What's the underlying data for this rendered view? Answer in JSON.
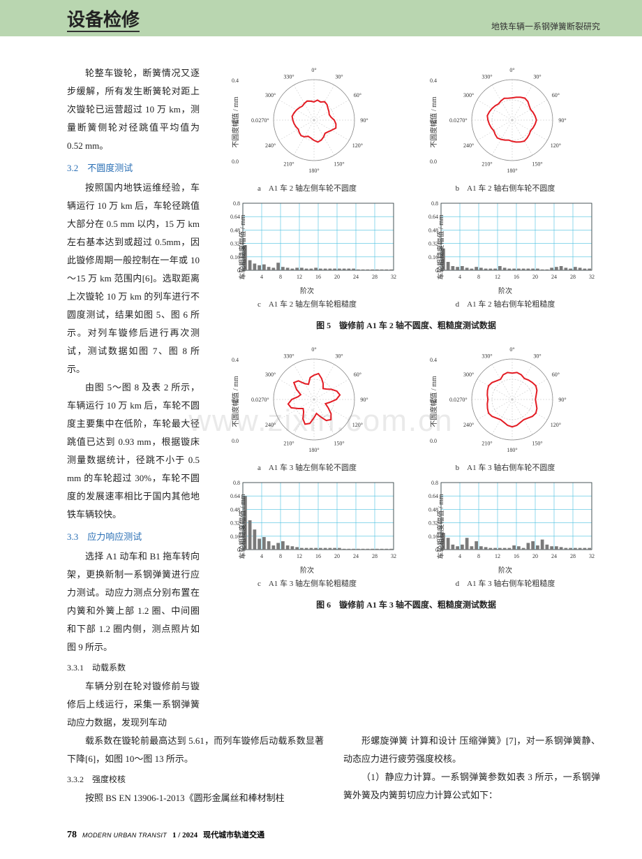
{
  "header": {
    "section": "设备检修",
    "running_title": "地铁车辆一系钢弹簧断裂研究"
  },
  "left": {
    "p1": "轮整车镟轮，断簧情况又逐步缓解，所有发生断簧轮对距上次镟轮已运营超过 10 万 km，测量断簧侧轮对径跳值平均值为 0.52 mm。",
    "h32": "3.2　不圆度测试",
    "p2": "按照国内地铁运维经验，车辆运行 10 万 km 后，车轮径跳值大部分在 0.5 mm 以内，15 万 km 左右基本达到或超过 0.5mm，因此镟修周期一般控制在一年或 10～15 万 km 范围内[6]。选取距离上次镟轮 10 万 km 的列车进行不圆度测试，结果如图 5、图 6 所示。对列车镟修后进行再次测试，测试数据如图 7、图 8 所示。",
    "p3": "由图 5～图 8 及表 2 所示，车辆运行 10 万 km 后，车轮不圆度主要集中在低阶，车轮最大径跳值已达到 0.93 mm，根据镟床测量数据统计，径跳不小于 0.5 mm 的车轮超过 30%，车轮不圆度的发展速率相比于国内其他地铁车辆较快。",
    "h33": "3.3　应力响应测试",
    "p4": "选择 A1 动车和 B1 拖车转向架，更换新制一系钢弹簧进行应力测试。动应力测点分别布置在内簧和外簧上部 1.2 圈、中间圈和下部 1.2 圈内侧，测点照片如图 9 所示。",
    "h331": "3.3.1　动载系数",
    "p5": "车辆分别在轮对镟修前与镟修后上线运行，采集一系钢弹簧动应力数据，发现列车动"
  },
  "bottom": {
    "left_p": "载系数在镟轮前最高达到 5.61，而列车镟修后动载系数显著下降[6]，如图 10～图 13 所示。",
    "left_h": "3.3.2　强度校核",
    "left_p2": "按照 BS EN 13906-1-2013《圆形金属丝和棒材制柱",
    "right_p": "形螺旋弹簧 计算和设计 压缩弹簧》[7]，对一系钢弹簧静、动态应力进行疲劳强度校核。",
    "right_p2": "（1）静应力计算。一系钢弹簧参数如表 3 所示，一系钢弹簧外簧及内簧剪切应力计算公式如下："
  },
  "figures": {
    "fig5": {
      "caption": "图 5　镟修前 A1 车 2 轴不圆度、粗糙度测试数据",
      "a_cap": "a　A1 车 2 轴左侧车轮不圆度",
      "b_cap": "b　A1 车 2 轴右侧车轮不圆度",
      "c_cap": "c　A1 车 2 轴左侧车轮粗糙度",
      "d_cap": "d　A1 车 2 轴右侧车轮粗糙度"
    },
    "fig6": {
      "caption": "图 6　镟修前 A1 车 3 轴不圆度、粗糙度测试数据",
      "a_cap": "a　A1 车 3 轴左侧车轮不圆度",
      "b_cap": "b　A1 车 3 轴右侧车轮不圆度",
      "c_cap": "c　A1 车 3 轴左侧车轮粗糙度",
      "d_cap": "d　A1 车 3 轴右侧车轮粗糙度"
    },
    "polar_style": {
      "rmax": 0.4,
      "rticks": [
        0.2,
        0.4
      ],
      "angles_deg": [
        0,
        30,
        60,
        90,
        120,
        150,
        180,
        210,
        240,
        270,
        300,
        330
      ],
      "angle_labels": [
        "0°",
        "30°",
        "60°",
        "90°",
        "120°",
        "150°",
        "180°",
        "210°",
        "240°",
        "270°",
        "300°",
        "330°"
      ],
      "line_color": "#e31b23",
      "line_width": 2,
      "grid_color": "#bfbfbf",
      "bg": "#ffffff",
      "ylabel": "不圆度幅值 / mm",
      "fontsize": 8
    },
    "bar_style": {
      "ymax": 0.8,
      "yticks": [
        0,
        0.16,
        0.32,
        0.48,
        0.64,
        0.8
      ],
      "xmax": 32,
      "xticks": [
        0,
        4,
        8,
        12,
        16,
        20,
        24,
        28,
        32
      ],
      "bar_color": "#7a7a7a",
      "grid_color": "#4ac0df",
      "ylabel": "车轮粗糙度幅值 / mm",
      "xlabel": "阶次",
      "fontsize": 8,
      "bg": "#ffffff"
    },
    "polar_data": {
      "fig5a": [
        0.18,
        0.2,
        0.19,
        0.21,
        0.2,
        0.18,
        0.17,
        0.16,
        0.17,
        0.2,
        0.22,
        0.23,
        0.2,
        0.18,
        0.17,
        0.19,
        0.21,
        0.22,
        0.2,
        0.18,
        0.17,
        0.19,
        0.2,
        0.19,
        0.18,
        0.19,
        0.2,
        0.21,
        0.22,
        0.21,
        0.2,
        0.19,
        0.18,
        0.19,
        0.2,
        0.19
      ],
      "fig5b": [
        0.22,
        0.23,
        0.24,
        0.25,
        0.24,
        0.22,
        0.21,
        0.22,
        0.23,
        0.24,
        0.23,
        0.22,
        0.21,
        0.22,
        0.23,
        0.24,
        0.23,
        0.22,
        0.21,
        0.2,
        0.21,
        0.22,
        0.23,
        0.22,
        0.21,
        0.22,
        0.23,
        0.24,
        0.25,
        0.24,
        0.23,
        0.22,
        0.21,
        0.22,
        0.23,
        0.22
      ],
      "fig6a": [
        0.24,
        0.26,
        0.22,
        0.18,
        0.14,
        0.16,
        0.2,
        0.24,
        0.26,
        0.22,
        0.16,
        0.12,
        0.16,
        0.22,
        0.26,
        0.24,
        0.18,
        0.14,
        0.18,
        0.24,
        0.26,
        0.22,
        0.16,
        0.14,
        0.18,
        0.24,
        0.26,
        0.22,
        0.16,
        0.14,
        0.2,
        0.26,
        0.24,
        0.18,
        0.16,
        0.22
      ],
      "fig6b": [
        0.26,
        0.27,
        0.26,
        0.24,
        0.25,
        0.26,
        0.27,
        0.26,
        0.24,
        0.23,
        0.24,
        0.26,
        0.27,
        0.26,
        0.24,
        0.23,
        0.24,
        0.26,
        0.27,
        0.26,
        0.24,
        0.23,
        0.24,
        0.26,
        0.27,
        0.26,
        0.25,
        0.24,
        0.25,
        0.26,
        0.27,
        0.26,
        0.24,
        0.23,
        0.26,
        0.27
      ]
    },
    "bar_data": {
      "fig5c": [
        0.3,
        0.12,
        0.08,
        0.06,
        0.07,
        0.04,
        0.03,
        0.09,
        0.04,
        0.03,
        0.02,
        0.03,
        0.03,
        0.02,
        0.02,
        0.03,
        0.02,
        0.02,
        0.02,
        0.02,
        0.02,
        0.02,
        0.02,
        0.02,
        0.01,
        0.01,
        0.01,
        0.01,
        0.01,
        0.01,
        0.01,
        0.01
      ],
      "fig5d": [
        0.26,
        0.1,
        0.05,
        0.04,
        0.05,
        0.03,
        0.02,
        0.04,
        0.03,
        0.02,
        0.02,
        0.02,
        0.05,
        0.03,
        0.02,
        0.02,
        0.02,
        0.02,
        0.02,
        0.02,
        0.02,
        0.01,
        0.01,
        0.03,
        0.04,
        0.05,
        0.03,
        0.02,
        0.04,
        0.03,
        0.02,
        0.02
      ],
      "fig6c": [
        0.64,
        0.35,
        0.24,
        0.13,
        0.15,
        0.1,
        0.05,
        0.08,
        0.1,
        0.05,
        0.04,
        0.03,
        0.02,
        0.02,
        0.02,
        0.02,
        0.02,
        0.02,
        0.02,
        0.02,
        0.02,
        0.01,
        0.01,
        0.01,
        0.01,
        0.01,
        0.01,
        0.01,
        0.01,
        0.01,
        0.01,
        0.01
      ],
      "fig6d": [
        0.2,
        0.14,
        0.06,
        0.04,
        0.06,
        0.14,
        0.04,
        0.1,
        0.04,
        0.03,
        0.02,
        0.02,
        0.02,
        0.02,
        0.02,
        0.05,
        0.04,
        0.02,
        0.08,
        0.1,
        0.05,
        0.12,
        0.06,
        0.04,
        0.04,
        0.03,
        0.02,
        0.02,
        0.02,
        0.02,
        0.02,
        0.02
      ]
    }
  },
  "footer": {
    "page": "78",
    "mag_en": "MODERN URBAN TRANSIT",
    "issue": "1 / 2024",
    "mag_cn": "现代城市轨道交通"
  },
  "watermark": "www.zixin.com.cn"
}
